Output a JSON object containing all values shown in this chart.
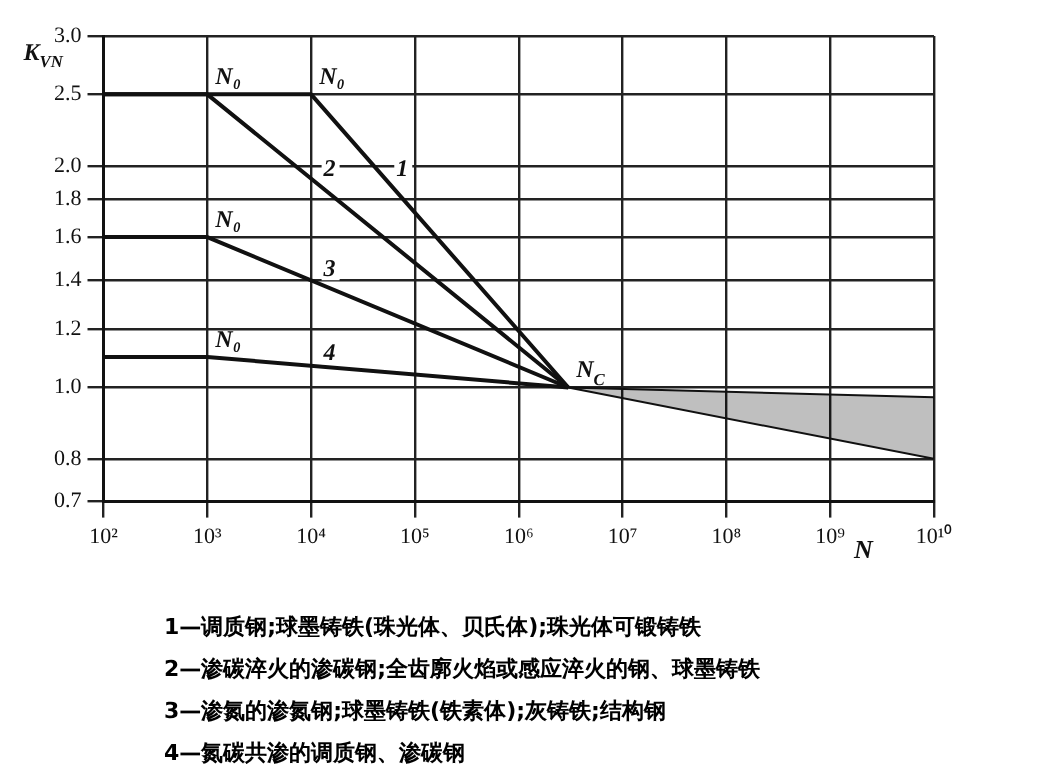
{
  "chart_data": {
    "type": "line",
    "ylabel": "K$_{VN}$",
    "xlabel": "N",
    "log": "xy",
    "grid": true,
    "legend": false,
    "marker": "none",
    "line_style": "solid",
    "xlim": [
      100,
      10000000000
    ],
    "ylim": [
      0.7,
      3.0
    ],
    "xticks": [
      {
        "value": 100,
        "label": "10²"
      },
      {
        "value": 1000,
        "label": "10³"
      },
      {
        "value": 10000,
        "label": "10⁴"
      },
      {
        "value": 100000,
        "label": "10⁵"
      },
      {
        "value": 1000000,
        "label": "10⁶"
      },
      {
        "value": 10000000,
        "label": "10⁷"
      },
      {
        "value": 100000000,
        "label": "10⁸"
      },
      {
        "value": 1000000000,
        "label": "10⁹"
      },
      {
        "value": 10000000000,
        "label": "10¹⁰"
      }
    ],
    "yticks": [
      0.7,
      0.8,
      {
        "value": 1,
        "label": "1.0"
      },
      1.2,
      1.4,
      1.6,
      1.8,
      {
        "value": 2,
        "label": "2.0"
      },
      2.5,
      {
        "value": 3,
        "label": "3.0"
      }
    ],
    "series": [
      {
        "name": "1",
        "color": "#111111",
        "x": [
          100,
          10000,
          3000000
        ],
        "values": [
          2.5,
          2.5,
          1.0
        ]
      },
      {
        "name": "2",
        "color": "#111111",
        "x": [
          100,
          1000,
          3000000
        ],
        "values": [
          2.5,
          2.5,
          1.0
        ]
      },
      {
        "name": "3",
        "color": "#111111",
        "x": [
          100,
          1000,
          3000000
        ],
        "values": [
          1.6,
          1.6,
          1.0
        ]
      },
      {
        "name": "4",
        "color": "#111111",
        "x": [
          100,
          1000,
          3000000
        ],
        "values": [
          1.1,
          1.1,
          1.0
        ]
      },
      {
        "color": "#111111",
        "x": [
          3000000,
          10000000000
        ],
        "values": [
          1.0,
          0.97
        ],
        "lower": [
          1.0,
          0.8
        ],
        "upper": [
          1.0,
          0.97
        ]
      }
    ],
    "annotations": [
      {
        "text": "N₀",
        "x": 1000,
        "y": 2.5
      },
      {
        "text": "N₀",
        "x": 10000,
        "y": 2.5
      },
      {
        "text": "N₀",
        "x": 1000,
        "y": 1.6
      },
      {
        "text": "N₀",
        "x": 1000,
        "y": 1.1
      },
      {
        "text": "N$_{C}$",
        "x": 3000000,
        "y": 1.0
      },
      "1—调质钢;球墨铸铁(珠光体、贝氏体);珠光体可锻铸铁",
      "2—渗碳淬火的渗碳钢;全齿廓火焰或感应淬火的钢、球墨铸铁",
      "3—渗氮的渗氮钢;球墨铸铁(铁素体);灰铸铁;结构钢",
      "4—氮碳共渗的调质钢、渗碳钢"
    ]
  }
}
